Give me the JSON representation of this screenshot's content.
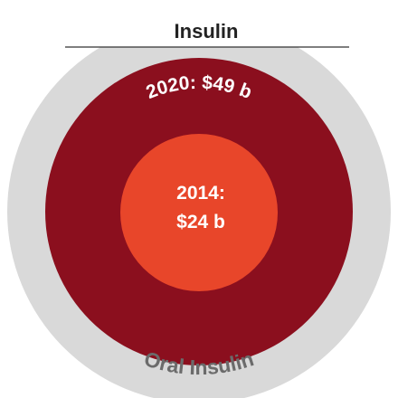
{
  "header": {
    "title": "Insulin"
  },
  "rings": {
    "outer": {
      "label": "Oral Insulin"
    },
    "middle": {
      "label": "2020: $49 b"
    },
    "inner": {
      "lines": [
        "2014:",
        "$24 b"
      ]
    }
  }
}
